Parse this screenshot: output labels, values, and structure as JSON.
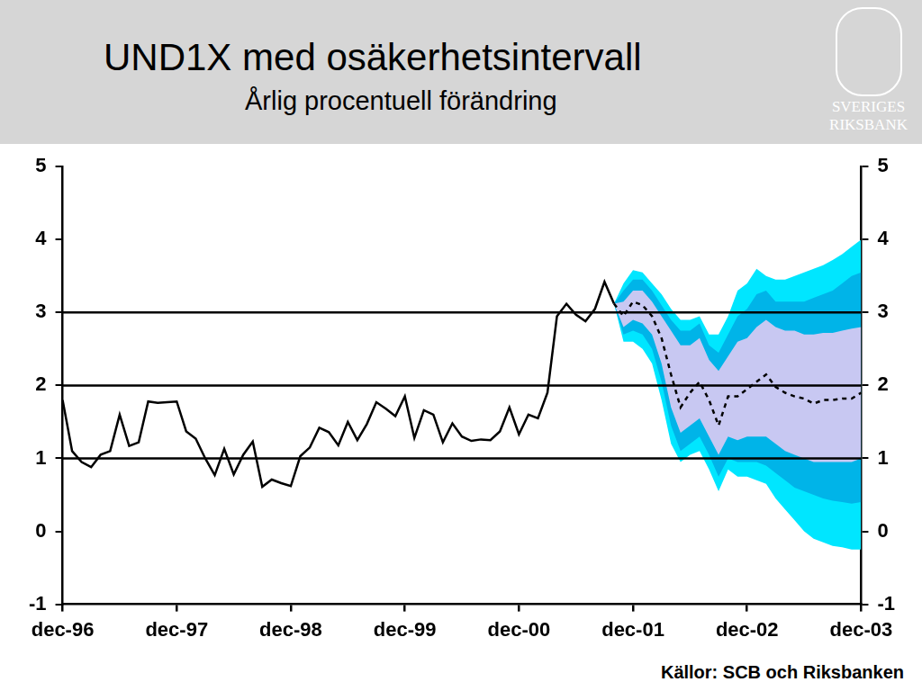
{
  "chart_data": {
    "type": "line",
    "title": "UND1X med osäkerhetsintervall",
    "subtitle": "Årlig procentuell förändring",
    "source": "Källor: SCB och Riksbanken",
    "logo_text": [
      "SVERIGES",
      "RIKSBANK"
    ],
    "categories": [
      "dec-96",
      null,
      null,
      null,
      null,
      null,
      null,
      null,
      null,
      null,
      null,
      null,
      "dec-97",
      null,
      null,
      null,
      null,
      null,
      null,
      null,
      null,
      null,
      null,
      null,
      "dec-98",
      null,
      null,
      null,
      null,
      null,
      null,
      null,
      null,
      null,
      null,
      null,
      "dec-99",
      null,
      null,
      null,
      null,
      null,
      null,
      null,
      null,
      null,
      null,
      null,
      "dec-00",
      null,
      null,
      null,
      null,
      null,
      null,
      null,
      null,
      null,
      null,
      null,
      "dec-01",
      null,
      null,
      null,
      null,
      null,
      null,
      null,
      null,
      null,
      null,
      null,
      "dec-02",
      null,
      null,
      null,
      null,
      null,
      null,
      null,
      null,
      null,
      null,
      null,
      "dec-03"
    ],
    "series": [
      {
        "color": "#000000",
        "line_style": "solid",
        "values": [
          1.8,
          1.1,
          0.95,
          0.88,
          1.05,
          1.1,
          1.6,
          1.17,
          1.22,
          1.78,
          1.76,
          1.77,
          1.78,
          1.37,
          1.27,
          1.0,
          0.77,
          1.13,
          0.78,
          1.05,
          1.23,
          0.61,
          0.71,
          0.66,
          0.62,
          1.03,
          1.15,
          1.42,
          1.36,
          1.18,
          1.5,
          1.25,
          1.47,
          1.77,
          1.68,
          1.58,
          1.85,
          1.28,
          1.66,
          1.6,
          1.22,
          1.48,
          1.3,
          1.24,
          1.26,
          1.25,
          1.37,
          1.7,
          1.33,
          1.6,
          1.55,
          1.9,
          2.95,
          3.12,
          2.97,
          2.88,
          3.05,
          3.42,
          3.12,
          null,
          null,
          null,
          null,
          null,
          null,
          null,
          null,
          null,
          null,
          null,
          null,
          null,
          null,
          null,
          null,
          null,
          null,
          null,
          null,
          null,
          null,
          null,
          null,
          null,
          null
        ]
      },
      {
        "color": "#000000",
        "line_style": "dashed",
        "values": [
          null,
          null,
          null,
          null,
          null,
          null,
          null,
          null,
          null,
          null,
          null,
          null,
          null,
          null,
          null,
          null,
          null,
          null,
          null,
          null,
          null,
          null,
          null,
          null,
          null,
          null,
          null,
          null,
          null,
          null,
          null,
          null,
          null,
          null,
          null,
          null,
          null,
          null,
          null,
          null,
          null,
          null,
          null,
          null,
          null,
          null,
          null,
          null,
          null,
          null,
          null,
          null,
          null,
          null,
          null,
          null,
          null,
          null,
          3.12,
          2.95,
          3.15,
          3.1,
          2.95,
          2.65,
          2.15,
          1.7,
          1.9,
          2.05,
          1.8,
          1.45,
          1.85,
          1.85,
          1.95,
          2.05,
          2.15,
          1.98,
          1.9,
          1.85,
          1.82,
          1.75,
          1.8,
          1.8,
          1.82,
          1.82,
          1.9
        ]
      }
    ],
    "bands": [
      {
        "color": "#00e6ff",
        "upper": [
          null,
          null,
          null,
          null,
          null,
          null,
          null,
          null,
          null,
          null,
          null,
          null,
          null,
          null,
          null,
          null,
          null,
          null,
          null,
          null,
          null,
          null,
          null,
          null,
          null,
          null,
          null,
          null,
          null,
          null,
          null,
          null,
          null,
          null,
          null,
          null,
          null,
          null,
          null,
          null,
          null,
          null,
          null,
          null,
          null,
          null,
          null,
          null,
          null,
          null,
          null,
          null,
          null,
          null,
          null,
          null,
          null,
          null,
          3.12,
          3.4,
          3.58,
          3.55,
          3.4,
          3.25,
          3.05,
          2.9,
          2.9,
          2.95,
          2.7,
          2.7,
          2.95,
          3.3,
          3.4,
          3.6,
          3.5,
          3.45,
          3.45,
          3.5,
          3.55,
          3.6,
          3.65,
          3.72,
          3.8,
          3.9,
          4.0
        ],
        "lower": [
          null,
          null,
          null,
          null,
          null,
          null,
          null,
          null,
          null,
          null,
          null,
          null,
          null,
          null,
          null,
          null,
          null,
          null,
          null,
          null,
          null,
          null,
          null,
          null,
          null,
          null,
          null,
          null,
          null,
          null,
          null,
          null,
          null,
          null,
          null,
          null,
          null,
          null,
          null,
          null,
          null,
          null,
          null,
          null,
          null,
          null,
          null,
          null,
          null,
          null,
          null,
          null,
          null,
          null,
          null,
          null,
          null,
          null,
          3.12,
          2.6,
          2.6,
          2.5,
          2.3,
          1.8,
          1.2,
          0.95,
          1.05,
          1.1,
          0.85,
          0.55,
          0.85,
          0.75,
          0.75,
          0.7,
          0.65,
          0.45,
          0.3,
          0.15,
          0.0,
          -0.1,
          -0.15,
          -0.2,
          -0.22,
          -0.25,
          -0.25
        ]
      },
      {
        "color": "#00b4e8",
        "upper": [
          null,
          null,
          null,
          null,
          null,
          null,
          null,
          null,
          null,
          null,
          null,
          null,
          null,
          null,
          null,
          null,
          null,
          null,
          null,
          null,
          null,
          null,
          null,
          null,
          null,
          null,
          null,
          null,
          null,
          null,
          null,
          null,
          null,
          null,
          null,
          null,
          null,
          null,
          null,
          null,
          null,
          null,
          null,
          null,
          null,
          null,
          null,
          null,
          null,
          null,
          null,
          null,
          null,
          null,
          null,
          null,
          null,
          null,
          3.12,
          3.3,
          3.45,
          3.45,
          3.3,
          3.1,
          2.9,
          2.75,
          2.75,
          2.85,
          2.55,
          2.45,
          2.7,
          2.95,
          3.05,
          3.25,
          3.3,
          3.15,
          3.15,
          3.15,
          3.15,
          3.2,
          3.25,
          3.3,
          3.4,
          3.5,
          3.55
        ],
        "lower": [
          null,
          null,
          null,
          null,
          null,
          null,
          null,
          null,
          null,
          null,
          null,
          null,
          null,
          null,
          null,
          null,
          null,
          null,
          null,
          null,
          null,
          null,
          null,
          null,
          null,
          null,
          null,
          null,
          null,
          null,
          null,
          null,
          null,
          null,
          null,
          null,
          null,
          null,
          null,
          null,
          null,
          null,
          null,
          null,
          null,
          null,
          null,
          null,
          null,
          null,
          null,
          null,
          null,
          null,
          null,
          null,
          null,
          null,
          3.12,
          2.7,
          2.75,
          2.7,
          2.5,
          2.05,
          1.45,
          1.1,
          1.2,
          1.3,
          1.05,
          0.75,
          1.0,
          0.95,
          0.95,
          0.95,
          0.9,
          0.8,
          0.7,
          0.6,
          0.55,
          0.5,
          0.45,
          0.42,
          0.4,
          0.38,
          0.4
        ]
      },
      {
        "color": "#c8c8f2",
        "upper": [
          null,
          null,
          null,
          null,
          null,
          null,
          null,
          null,
          null,
          null,
          null,
          null,
          null,
          null,
          null,
          null,
          null,
          null,
          null,
          null,
          null,
          null,
          null,
          null,
          null,
          null,
          null,
          null,
          null,
          null,
          null,
          null,
          null,
          null,
          null,
          null,
          null,
          null,
          null,
          null,
          null,
          null,
          null,
          null,
          null,
          null,
          null,
          null,
          null,
          null,
          null,
          null,
          null,
          null,
          null,
          null,
          null,
          null,
          3.12,
          3.15,
          3.3,
          3.3,
          3.15,
          2.95,
          2.75,
          2.55,
          2.55,
          2.65,
          2.35,
          2.2,
          2.4,
          2.6,
          2.65,
          2.8,
          2.9,
          2.8,
          2.75,
          2.75,
          2.7,
          2.7,
          2.72,
          2.72,
          2.75,
          2.78,
          2.8
        ],
        "lower": [
          null,
          null,
          null,
          null,
          null,
          null,
          null,
          null,
          null,
          null,
          null,
          null,
          null,
          null,
          null,
          null,
          null,
          null,
          null,
          null,
          null,
          null,
          null,
          null,
          null,
          null,
          null,
          null,
          null,
          null,
          null,
          null,
          null,
          null,
          null,
          null,
          null,
          null,
          null,
          null,
          null,
          null,
          null,
          null,
          null,
          null,
          null,
          null,
          null,
          null,
          null,
          null,
          null,
          null,
          null,
          null,
          null,
          null,
          3.12,
          2.8,
          2.9,
          2.85,
          2.7,
          2.3,
          1.7,
          1.35,
          1.45,
          1.55,
          1.3,
          1.05,
          1.3,
          1.25,
          1.3,
          1.3,
          1.3,
          1.2,
          1.1,
          1.05,
          1.0,
          0.95,
          0.95,
          0.95,
          0.95,
          0.95,
          1.0
        ]
      }
    ],
    "reference_lines": [
      1,
      2,
      3
    ],
    "ylim": [
      -1,
      5
    ],
    "yticks": [
      -1,
      0,
      1,
      2,
      3,
      4,
      5
    ],
    "y2lim": [
      -1,
      5
    ],
    "y2ticks": [
      -1,
      0,
      1,
      2,
      3,
      4,
      5
    ],
    "grid": false
  }
}
